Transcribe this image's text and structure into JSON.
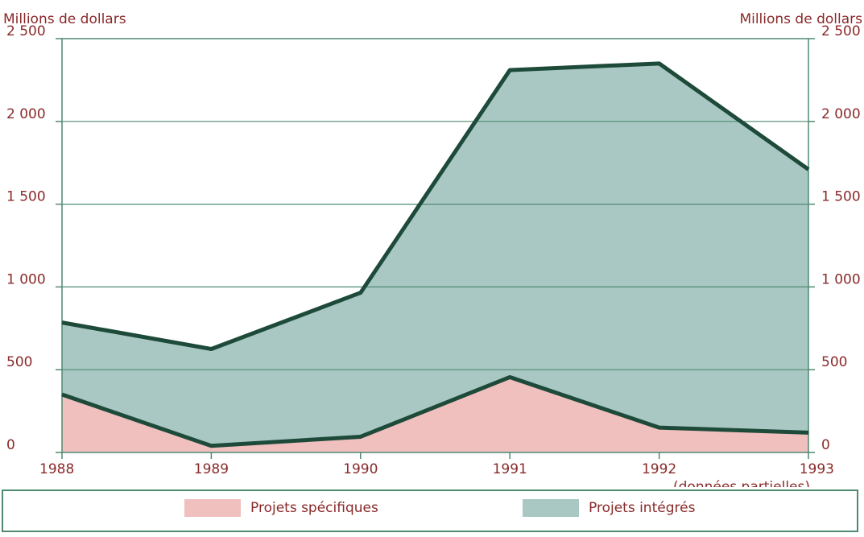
{
  "chart_data": {
    "type": "area",
    "stacked": true,
    "x": [
      "1988",
      "1989",
      "1990",
      "1991",
      "1992",
      "1993"
    ],
    "x_note": "(données partielles)",
    "ylabel_left": "Millions de dollars",
    "ylabel_right": "Millions de dollars",
    "ylim": [
      0,
      2500
    ],
    "yticks": [
      0,
      500,
      1000,
      1500,
      2000,
      2500
    ],
    "ytick_labels": [
      "0",
      "500",
      "1 000",
      "1 500",
      "2 000",
      "2 500"
    ],
    "grid": true,
    "legend_position": "bottom",
    "series": [
      {
        "name": "Projets spécifiques",
        "values": [
          350,
          40,
          95,
          455,
          150,
          120
        ],
        "color": "#f0c0bf"
      },
      {
        "name": "Projets intégrés",
        "values": [
          435,
          585,
          870,
          1855,
          2200,
          1590
        ],
        "color": "#a9c8c4"
      }
    ],
    "line_color": "#1e4a3a",
    "text_color": "#8a2a2a",
    "grid_color": "#4f8a70"
  }
}
